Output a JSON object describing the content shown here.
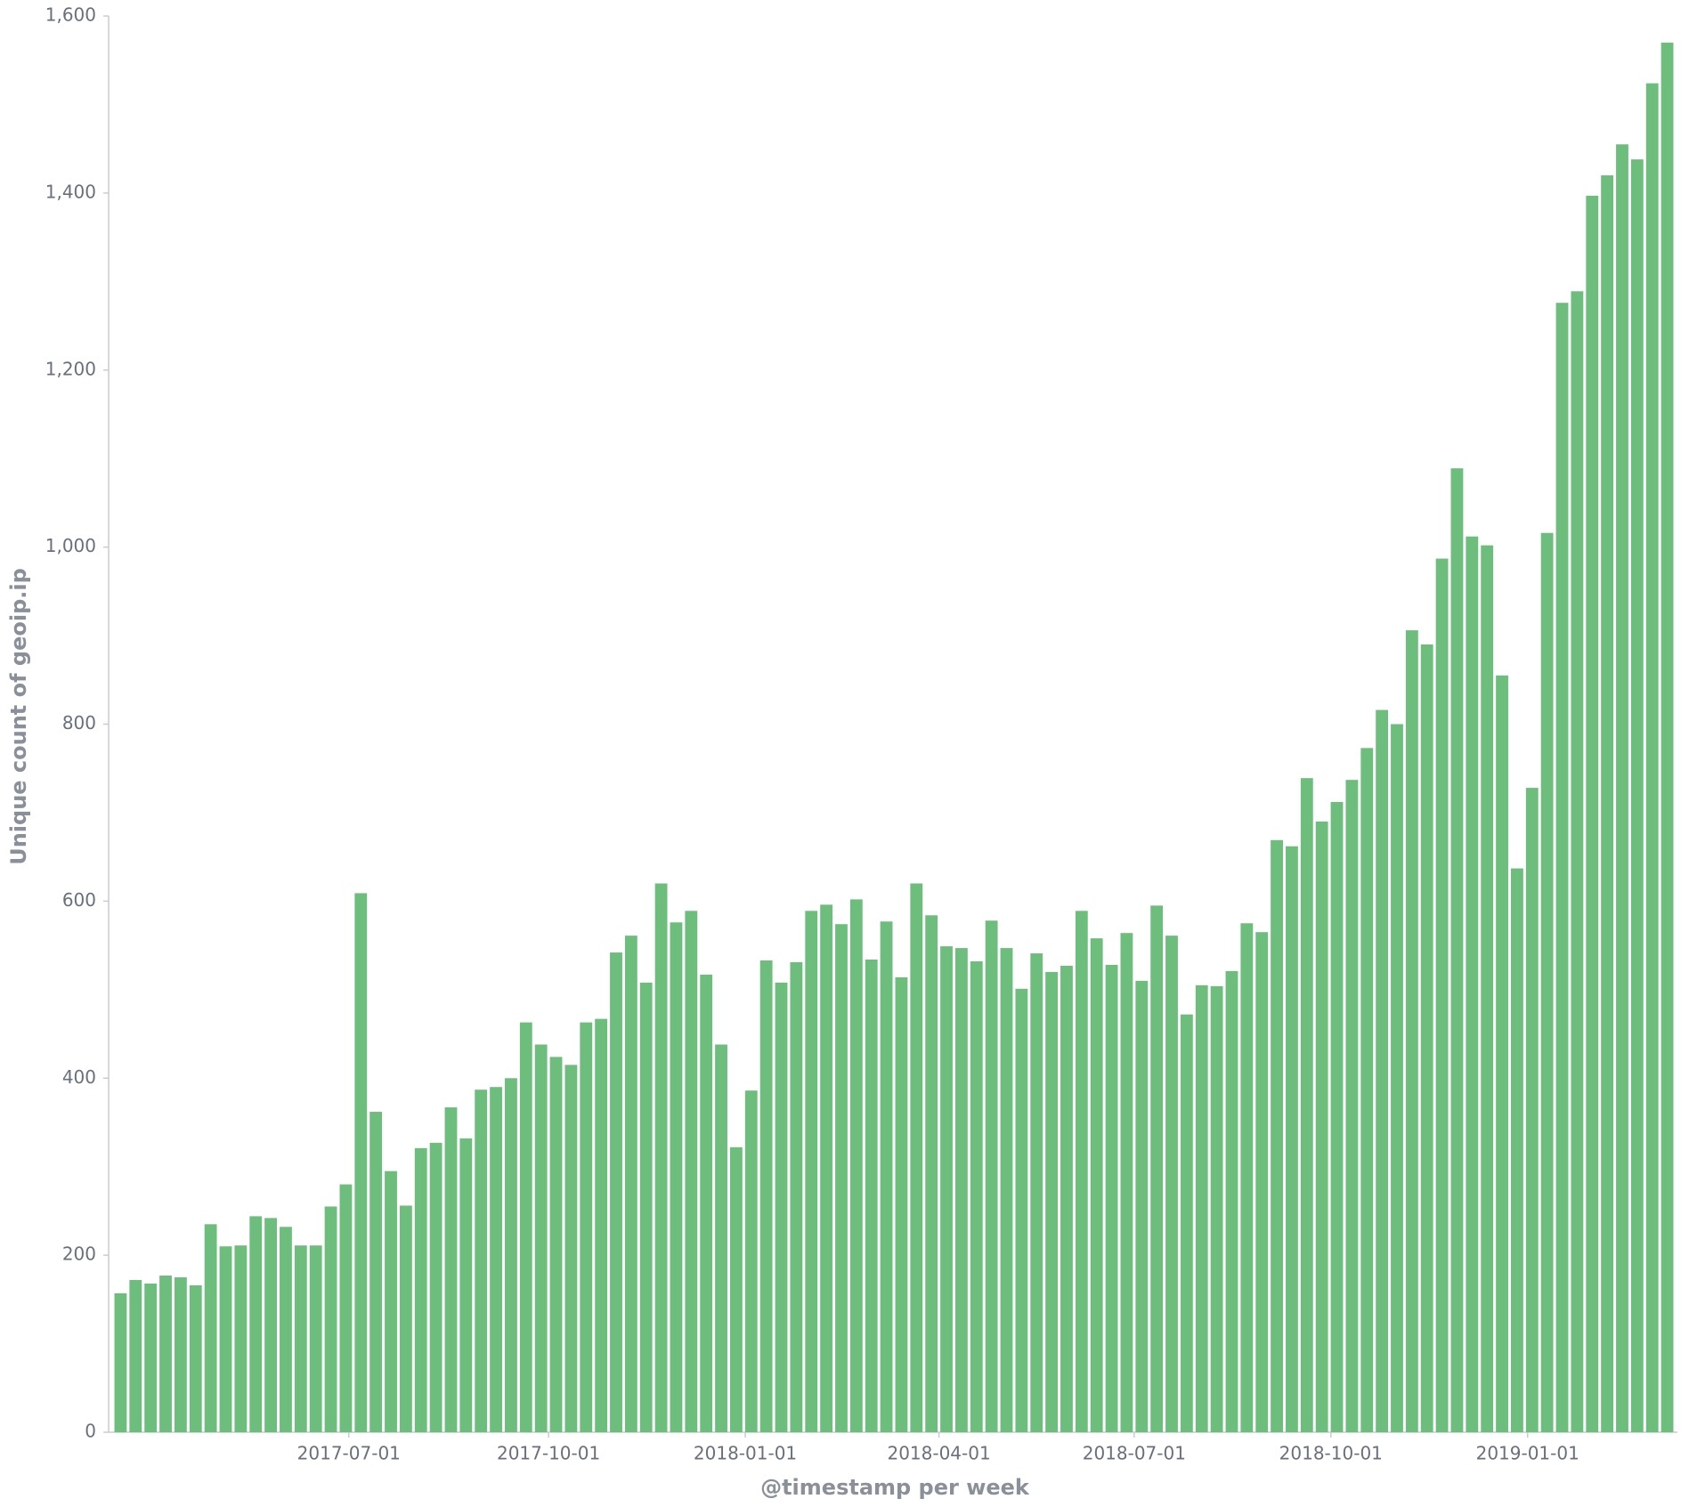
{
  "chart_data": {
    "type": "bar",
    "x_label": "@timestamp per week",
    "y_label": "Unique count of geoip.ip",
    "color": "#6dbe7d",
    "categories": [
      null,
      null,
      null,
      null,
      null,
      null,
      null,
      null,
      null,
      null,
      null,
      null,
      null,
      null,
      null,
      null,
      null,
      null,
      null,
      null,
      null,
      null,
      null,
      null,
      null,
      null,
      null,
      null,
      null,
      null,
      null,
      null,
      null,
      null,
      null,
      null,
      null,
      null,
      null,
      null,
      null,
      null,
      null,
      null,
      null,
      null,
      null,
      null,
      null,
      null,
      null,
      null,
      null,
      null,
      null,
      null,
      null,
      null,
      null,
      null,
      null,
      null,
      null,
      null,
      null,
      null,
      null,
      null,
      null,
      null,
      null,
      null,
      null,
      null,
      null,
      null,
      null,
      null,
      null,
      null,
      null,
      null,
      null,
      null,
      null,
      null,
      null,
      null,
      null,
      null,
      null,
      null,
      null,
      null,
      null,
      null,
      null,
      null,
      null,
      null,
      null,
      null,
      null,
      null
    ],
    "values": [
      157,
      172,
      168,
      177,
      175,
      166,
      235,
      210,
      211,
      244,
      242,
      232,
      211,
      211,
      255,
      280,
      609,
      362,
      295,
      256,
      321,
      327,
      367,
      332,
      387,
      390,
      400,
      463,
      438,
      424,
      415,
      463,
      467,
      542,
      561,
      508,
      620,
      576,
      589,
      517,
      438,
      322,
      386,
      533,
      508,
      531,
      589,
      596,
      574,
      602,
      534,
      577,
      514,
      620,
      584,
      549,
      547,
      532,
      578,
      547,
      501,
      541,
      520,
      527,
      589,
      558,
      528,
      564,
      510,
      595,
      561,
      472,
      505,
      504,
      521,
      575,
      565,
      669,
      662,
      739,
      690,
      712,
      737,
      773,
      816,
      800,
      906,
      890,
      987,
      1089,
      1012,
      1002,
      855,
      637,
      728,
      1016,
      1276,
      1289,
      1397,
      1420,
      1455,
      1438,
      1524,
      1570
    ],
    "ylim": [
      0,
      1600
    ],
    "yticks": [
      0,
      200,
      400,
      600,
      800,
      {
        "value": 1000,
        "label": "1,000"
      },
      {
        "value": 1200,
        "label": "1,200"
      },
      {
        "value": 1400,
        "label": "1,400"
      },
      {
        "value": 1600,
        "label": "1,600"
      }
    ],
    "xticks": [
      {
        "value": 15.2,
        "label": "2017-07-01"
      },
      {
        "value": 28.5,
        "label": "2017-10-01"
      },
      {
        "value": 41.6,
        "label": "2018-01-01"
      },
      {
        "value": 54.5,
        "label": "2018-04-01"
      },
      {
        "value": 67.5,
        "label": "2018-07-01"
      },
      {
        "value": 80.6,
        "label": "2018-10-01"
      },
      {
        "value": 93.7,
        "label": "2019-01-01"
      }
    ]
  }
}
